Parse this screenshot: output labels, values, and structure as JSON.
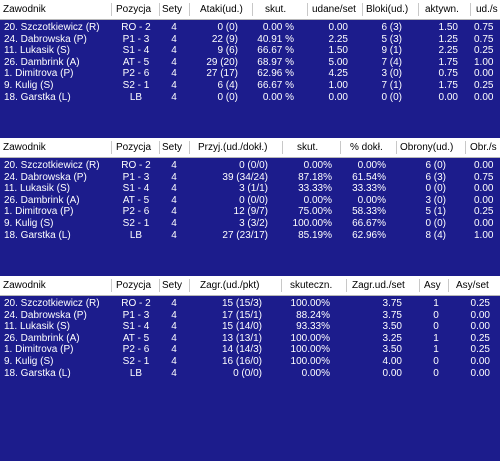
{
  "tables": [
    {
      "name": "attack",
      "headers": [
        "Zawodnik",
        "Pozycja",
        "Sety",
        "Ataki(ud.)",
        "skut.",
        "udane/set",
        "Bloki(ud.)",
        "aktywn.",
        "ud./s"
      ],
      "rows": [
        [
          "20. Szczotkiewicz (R)",
          "RO - 2",
          "4",
          "0 (0)",
          "0.00 %",
          "0.00",
          "6 (3)",
          "1.50",
          "0.75"
        ],
        [
          "24. Dabrowska (P)",
          "P1 - 3",
          "4",
          "22 (9)",
          "40.91 %",
          "2.25",
          "5 (3)",
          "1.25",
          "0.75"
        ],
        [
          "11. Lukasik (S)",
          "S1 - 4",
          "4",
          "9 (6)",
          "66.67 %",
          "1.50",
          "9 (1)",
          "2.25",
          "0.25"
        ],
        [
          "26. Dambrink (A)",
          "AT - 5",
          "4",
          "29 (20)",
          "68.97 %",
          "5.00",
          "7 (4)",
          "1.75",
          "1.00"
        ],
        [
          "1. Dimitrova (P)",
          "P2 - 6",
          "4",
          "27 (17)",
          "62.96 %",
          "4.25",
          "3 (0)",
          "0.75",
          "0.00"
        ],
        [
          "9. Kulig (S)",
          "S2 - 1",
          "4",
          "6 (4)",
          "66.67 %",
          "1.00",
          "7 (1)",
          "1.75",
          "0.25"
        ],
        [
          "18. Garstka (L)",
          "LB",
          "4",
          "0 (0)",
          "0.00 %",
          "0.00",
          "0 (0)",
          "0.00",
          "0.00"
        ]
      ]
    },
    {
      "name": "reception",
      "headers": [
        "Zawodnik",
        "Pozycja",
        "Sety",
        "Przyj.(ud./dokł.)",
        "skut.",
        "% dokł.",
        "Obrony(ud.)",
        "Obr./s"
      ],
      "rows": [
        [
          "20. Szczotkiewicz (R)",
          "RO - 2",
          "4",
          "0 (0/0)",
          "0.00%",
          "0.00%",
          "6 (0)",
          "0.00"
        ],
        [
          "24. Dabrowska (P)",
          "P1 - 3",
          "4",
          "39 (34/24)",
          "87.18%",
          "61.54%",
          "6 (3)",
          "0.75"
        ],
        [
          "11. Lukasik (S)",
          "S1 - 4",
          "4",
          "3 (1/1)",
          "33.33%",
          "33.33%",
          "0 (0)",
          "0.00"
        ],
        [
          "26. Dambrink (A)",
          "AT - 5",
          "4",
          "0 (0/0)",
          "0.00%",
          "0.00%",
          "3 (0)",
          "0.00"
        ],
        [
          "1. Dimitrova (P)",
          "P2 - 6",
          "4",
          "12 (9/7)",
          "75.00%",
          "58.33%",
          "5 (1)",
          "0.25"
        ],
        [
          "9. Kulig (S)",
          "S2 - 1",
          "4",
          "3 (3/2)",
          "100.00%",
          "66.67%",
          "0 (0)",
          "0.00"
        ],
        [
          "18. Garstka (L)",
          "LB",
          "4",
          "27 (23/17)",
          "85.19%",
          "62.96%",
          "8 (4)",
          "1.00"
        ]
      ]
    },
    {
      "name": "serve",
      "headers": [
        "Zawodnik",
        "Pozycja",
        "Sety",
        "Zagr.(ud./pkt)",
        "skuteczn.",
        "Zagr.ud./set",
        "Asy",
        "Asy/set"
      ],
      "rows": [
        [
          "20. Szczotkiewicz (R)",
          "RO - 2",
          "4",
          "15 (15/3)",
          "100.00%",
          "3.75",
          "1",
          "0.25"
        ],
        [
          "24. Dabrowska (P)",
          "P1 - 3",
          "4",
          "17 (15/1)",
          "88.24%",
          "3.75",
          "0",
          "0.00"
        ],
        [
          "11. Lukasik (S)",
          "S1 - 4",
          "4",
          "15 (14/0)",
          "93.33%",
          "3.50",
          "0",
          "0.00"
        ],
        [
          "26. Dambrink (A)",
          "AT - 5",
          "4",
          "13 (13/1)",
          "100.00%",
          "3.25",
          "1",
          "0.25"
        ],
        [
          "1. Dimitrova (P)",
          "P2 - 6",
          "4",
          "14 (14/3)",
          "100.00%",
          "3.50",
          "1",
          "0.25"
        ],
        [
          "9. Kulig (S)",
          "S2 - 1",
          "4",
          "16 (16/0)",
          "100.00%",
          "4.00",
          "0",
          "0.00"
        ],
        [
          "18. Garstka (L)",
          "LB",
          "4",
          "0 (0/0)",
          "0.00%",
          "0.00",
          "0",
          "0.00"
        ]
      ]
    }
  ]
}
